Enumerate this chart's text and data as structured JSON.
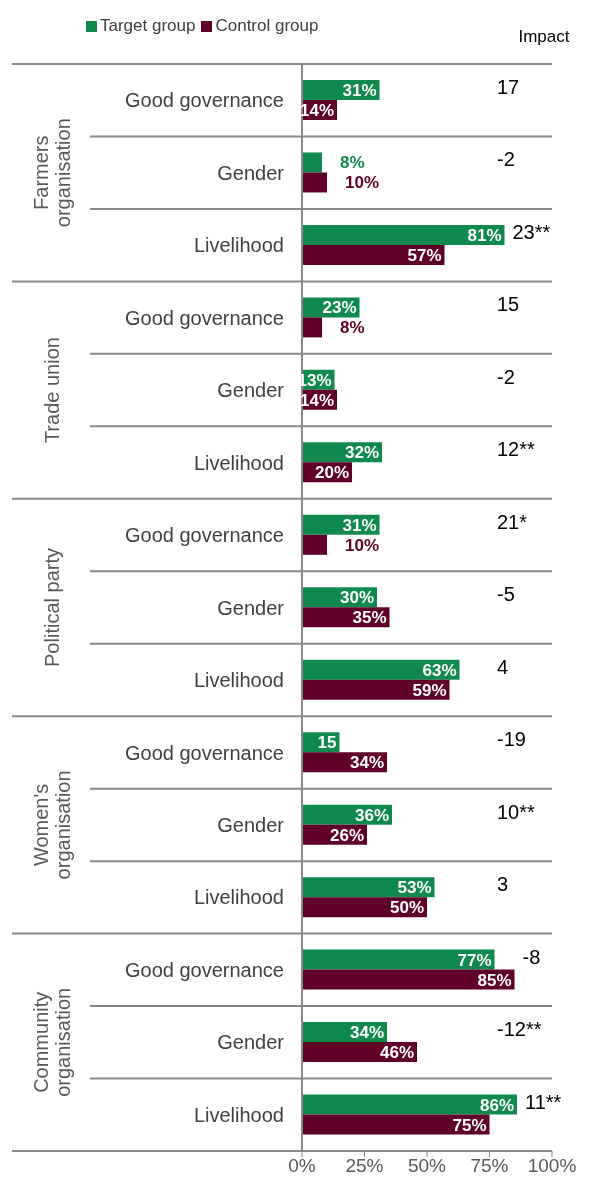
{
  "chart_data": {
    "type": "bar",
    "orientation": "horizontal",
    "categories": [
      "Good governance",
      "Gender",
      "Livelihood",
      "Good governance",
      "Gender",
      "Livelihood",
      "Good governance",
      "Gender",
      "Livelihood",
      "Good governance",
      "Gender",
      "Livelihood",
      "Good governance",
      "Gender",
      "Livelihood"
    ],
    "series": [
      {
        "name": "Target group",
        "color": "#0f8a4c",
        "values": [
          31,
          8,
          81,
          23,
          13,
          32,
          31,
          30,
          63,
          15,
          36,
          53,
          77,
          34,
          86
        ],
        "value_labels": [
          "31%",
          "8%",
          "81%",
          "23%",
          "13%",
          "32%",
          "31%",
          "30%",
          "63%",
          "15",
          "36%",
          "53%",
          "77%",
          "34%",
          "86%"
        ]
      },
      {
        "name": "Control group",
        "color": "#600028",
        "values": [
          14,
          10,
          57,
          8,
          14,
          20,
          10,
          35,
          59,
          34,
          26,
          50,
          85,
          46,
          75
        ],
        "value_labels": [
          "14%",
          "10%",
          "57%",
          "8%",
          "14%",
          "20%",
          "10%",
          "35%",
          "59%",
          "34%",
          "26%",
          "50%",
          "85%",
          "46%",
          "75%"
        ]
      }
    ],
    "xlim": [
      0,
      100
    ],
    "xticks": [
      {
        "value": 0,
        "label": "0%"
      },
      {
        "value": 25,
        "label": "25%"
      },
      {
        "value": 50,
        "label": "50%"
      },
      {
        "value": 75,
        "label": "75%"
      },
      {
        "value": 100,
        "label": "100%"
      }
    ],
    "legend": "top left",
    "grid": false,
    "annotations": [
      "Farmers\norganisation",
      "Trade union",
      "Political party",
      "Women's\norganisation",
      "Community\norganisation",
      "Impact",
      "17",
      "-2",
      "23**",
      "15",
      "-2",
      "12**",
      "21*",
      "-5",
      "4",
      "-19",
      "10**",
      "3",
      "-8",
      "-12**",
      "11**"
    ]
  }
}
